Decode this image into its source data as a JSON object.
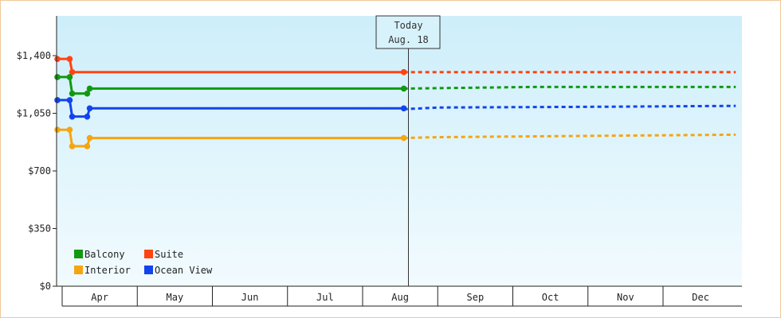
{
  "chart_data": {
    "type": "line",
    "y_ticks": [
      "$0",
      "$350",
      "$700",
      "$1,050",
      "$1,400"
    ],
    "ylim": [
      0,
      1650
    ],
    "months": [
      "Apr",
      "May",
      "Jun",
      "Jul",
      "Aug",
      "Sep",
      "Oct",
      "Nov",
      "Dec"
    ],
    "today": {
      "title": "Today",
      "date": "Aug. 18"
    },
    "legend": [
      "Balcony",
      "Suite",
      "Interior",
      "Ocean View"
    ],
    "series": [
      {
        "name": "Suite",
        "color": "#ff4411",
        "x": [
          "Mar 28",
          "Apr 4",
          "Apr 5",
          "Aug 18"
        ],
        "values": [
          1380,
          1380,
          1300,
          1300
        ],
        "forecast_x": [
          "Aug 18",
          "Dec 31"
        ],
        "forecast_values": [
          1300,
          1300
        ]
      },
      {
        "name": "Balcony",
        "color": "#119911",
        "x": [
          "Mar 28",
          "Apr 4",
          "Apr 5",
          "Apr 11",
          "Apr 12",
          "Aug 18"
        ],
        "values": [
          1270,
          1270,
          1170,
          1170,
          1200,
          1200
        ],
        "forecast_x": [
          "Aug 18",
          "Oct 10",
          "Dec 31"
        ],
        "forecast_values": [
          1200,
          1210,
          1210
        ]
      },
      {
        "name": "Ocean View",
        "color": "#1144ee",
        "x": [
          "Mar 28",
          "Apr 4",
          "Apr 5",
          "Apr 11",
          "Apr 12",
          "Aug 18"
        ],
        "values": [
          1130,
          1130,
          1030,
          1030,
          1080,
          1080
        ],
        "forecast_x": [
          "Aug 18",
          "Sep 1",
          "Nov 10",
          "Dec 31"
        ],
        "forecast_values": [
          1075,
          1085,
          1090,
          1095
        ]
      },
      {
        "name": "Interior",
        "color": "#f5a511",
        "x": [
          "Mar 28",
          "Apr 4",
          "Apr 5",
          "Apr 11",
          "Apr 12",
          "Aug 18"
        ],
        "values": [
          950,
          950,
          850,
          850,
          900,
          900
        ],
        "forecast_x": [
          "Aug 18",
          "Sep 1",
          "Oct 10",
          "Nov 20",
          "Dec 31"
        ],
        "forecast_values": [
          900,
          905,
          910,
          915,
          920
        ]
      }
    ]
  }
}
